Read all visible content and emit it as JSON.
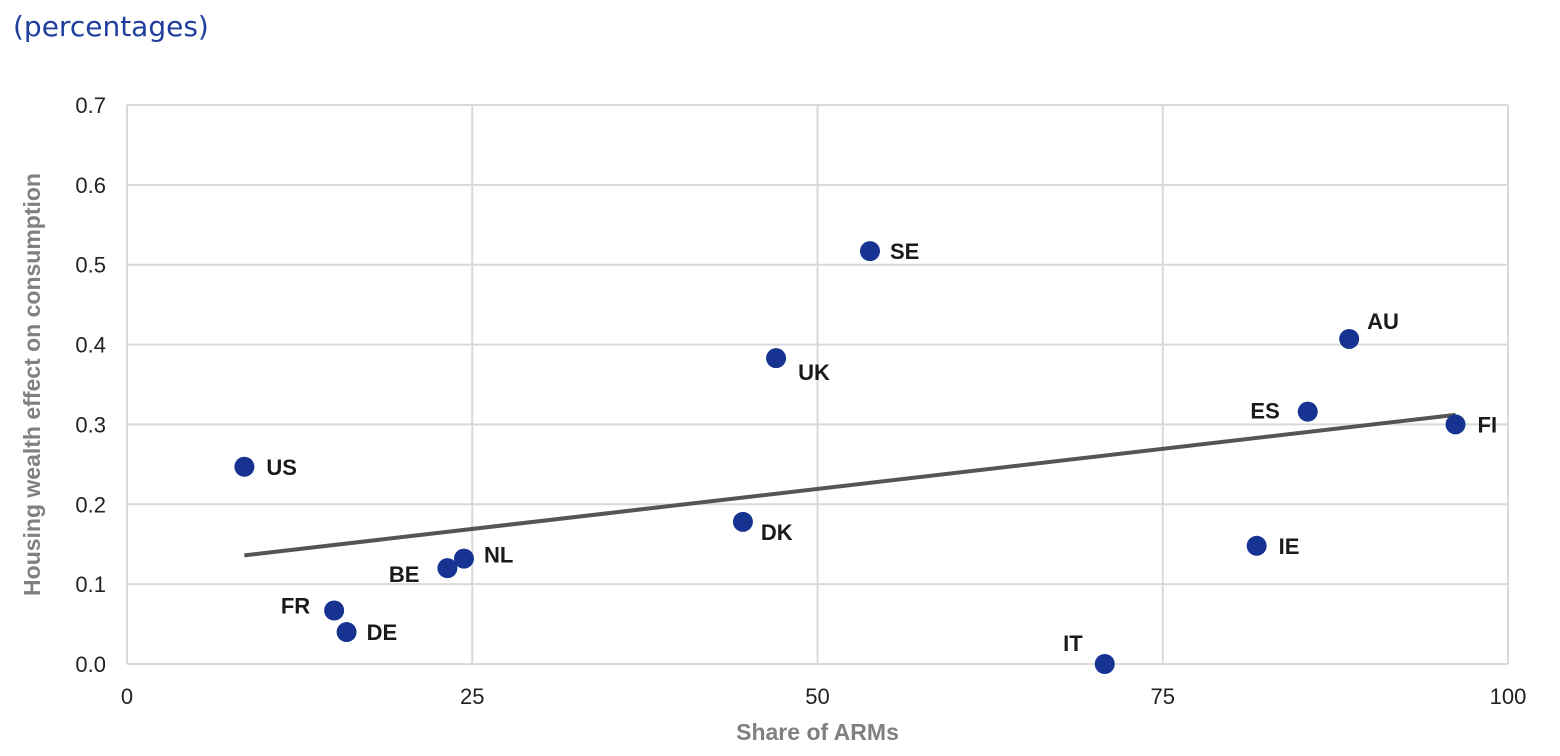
{
  "subtitle": "(percentages)",
  "colors": {
    "subtitle": "#1f3e9e",
    "points": "#173391",
    "trendline": "#555555",
    "grid": "#d9d9d9"
  },
  "chart_data": {
    "type": "scatter",
    "xlabel": "Share of ARMs",
    "ylabel": "Housing wealth effect on consumption",
    "xlim": [
      0,
      100
    ],
    "ylim": [
      0,
      0.7
    ],
    "x_ticks": [
      0,
      25,
      50,
      75,
      100
    ],
    "y_ticks": [
      0.0,
      0.1,
      0.2,
      0.3,
      0.4,
      0.5,
      0.6,
      0.7
    ],
    "y_tick_labels": [
      "0.0",
      "0.1",
      "0.2",
      "0.3",
      "0.4",
      "0.5",
      "0.6",
      "0.7"
    ],
    "grid": true,
    "points": [
      {
        "label": "US",
        "x": 8.5,
        "y": 0.247
      },
      {
        "label": "FR",
        "x": 15.0,
        "y": 0.067
      },
      {
        "label": "DE",
        "x": 15.9,
        "y": 0.04
      },
      {
        "label": "BE",
        "x": 23.2,
        "y": 0.12
      },
      {
        "label": "NL",
        "x": 24.4,
        "y": 0.132
      },
      {
        "label": "DK",
        "x": 44.6,
        "y": 0.178
      },
      {
        "label": "UK",
        "x": 47.0,
        "y": 0.383
      },
      {
        "label": "SE",
        "x": 53.8,
        "y": 0.517
      },
      {
        "label": "IT",
        "x": 70.8,
        "y": 0.0
      },
      {
        "label": "IE",
        "x": 81.8,
        "y": 0.148
      },
      {
        "label": "ES",
        "x": 85.5,
        "y": 0.316
      },
      {
        "label": "AU",
        "x": 88.5,
        "y": 0.407
      },
      {
        "label": "FI",
        "x": 96.2,
        "y": 0.3
      }
    ],
    "trendline": {
      "x": [
        8.5,
        96.2
      ],
      "y": [
        0.136,
        0.312
      ]
    }
  }
}
